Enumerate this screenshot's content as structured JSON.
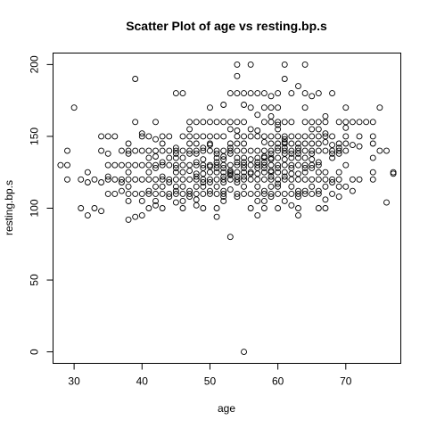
{
  "chart_data": {
    "type": "scatter",
    "title": "Scatter Plot of age vs resting.bp.s",
    "xlabel": "age",
    "ylabel": "resting.bp.s",
    "xlim": [
      26.9,
      78.1
    ],
    "ylim": [
      -8,
      208
    ],
    "xticks": [
      30,
      40,
      50,
      60,
      70
    ],
    "yticks": [
      0,
      50,
      100,
      150,
      200
    ],
    "grid": false,
    "points": [
      [
        28,
        130
      ],
      [
        29,
        120
      ],
      [
        29,
        130
      ],
      [
        29,
        140
      ],
      [
        30,
        170
      ],
      [
        31,
        100
      ],
      [
        31,
        120
      ],
      [
        32,
        95
      ],
      [
        32,
        118
      ],
      [
        32,
        125
      ],
      [
        33,
        100
      ],
      [
        33,
        120
      ],
      [
        34,
        98
      ],
      [
        34,
        118
      ],
      [
        34,
        140
      ],
      [
        34,
        150
      ],
      [
        35,
        110
      ],
      [
        35,
        120
      ],
      [
        35,
        122
      ],
      [
        35,
        130
      ],
      [
        35,
        138
      ],
      [
        35,
        150
      ],
      [
        36,
        110
      ],
      [
        36,
        120
      ],
      [
        36,
        130
      ],
      [
        36,
        150
      ],
      [
        37,
        112
      ],
      [
        37,
        118
      ],
      [
        37,
        120
      ],
      [
        37,
        130
      ],
      [
        37,
        140
      ],
      [
        38,
        92
      ],
      [
        38,
        105
      ],
      [
        38,
        110
      ],
      [
        38,
        115
      ],
      [
        38,
        120
      ],
      [
        38,
        125
      ],
      [
        38,
        130
      ],
      [
        38,
        138
      ],
      [
        38,
        140
      ],
      [
        38,
        145
      ],
      [
        39,
        94
      ],
      [
        39,
        110
      ],
      [
        39,
        120
      ],
      [
        39,
        130
      ],
      [
        39,
        140
      ],
      [
        39,
        160
      ],
      [
        39,
        190
      ],
      [
        40,
        95
      ],
      [
        40,
        105
      ],
      [
        40,
        110
      ],
      [
        40,
        120
      ],
      [
        40,
        130
      ],
      [
        40,
        140
      ],
      [
        40,
        150
      ],
      [
        40,
        152
      ],
      [
        41,
        100
      ],
      [
        41,
        110
      ],
      [
        41,
        112
      ],
      [
        41,
        120
      ],
      [
        41,
        125
      ],
      [
        41,
        130
      ],
      [
        41,
        135
      ],
      [
        41,
        140
      ],
      [
        41,
        150
      ],
      [
        42,
        102
      ],
      [
        42,
        105
      ],
      [
        42,
        110
      ],
      [
        42,
        115
      ],
      [
        42,
        120
      ],
      [
        42,
        128
      ],
      [
        42,
        130
      ],
      [
        42,
        136
      ],
      [
        42,
        140
      ],
      [
        42,
        148
      ],
      [
        42,
        160
      ],
      [
        43,
        100
      ],
      [
        43,
        110
      ],
      [
        43,
        115
      ],
      [
        43,
        120
      ],
      [
        43,
        122
      ],
      [
        43,
        130
      ],
      [
        43,
        132
      ],
      [
        43,
        140
      ],
      [
        43,
        145
      ],
      [
        43,
        150
      ],
      [
        44,
        108
      ],
      [
        44,
        110
      ],
      [
        44,
        118
      ],
      [
        44,
        120
      ],
      [
        44,
        130
      ],
      [
        44,
        135
      ],
      [
        44,
        140
      ],
      [
        44,
        150
      ],
      [
        45,
        104
      ],
      [
        45,
        110
      ],
      [
        45,
        112
      ],
      [
        45,
        115
      ],
      [
        45,
        120
      ],
      [
        45,
        125
      ],
      [
        45,
        128
      ],
      [
        45,
        130
      ],
      [
        45,
        135
      ],
      [
        45,
        138
      ],
      [
        45,
        140
      ],
      [
        45,
        142
      ],
      [
        45,
        180
      ],
      [
        46,
        100
      ],
      [
        46,
        105
      ],
      [
        46,
        110
      ],
      [
        46,
        115
      ],
      [
        46,
        120
      ],
      [
        46,
        125
      ],
      [
        46,
        130
      ],
      [
        46,
        135
      ],
      [
        46,
        140
      ],
      [
        46,
        150
      ],
      [
        46,
        180
      ],
      [
        47,
        108
      ],
      [
        47,
        110
      ],
      [
        47,
        112
      ],
      [
        47,
        120
      ],
      [
        47,
        126
      ],
      [
        47,
        130
      ],
      [
        47,
        138
      ],
      [
        47,
        140
      ],
      [
        47,
        145
      ],
      [
        47,
        150
      ],
      [
        47,
        155
      ],
      [
        47,
        160
      ],
      [
        48,
        102
      ],
      [
        48,
        106
      ],
      [
        48,
        110
      ],
      [
        48,
        115
      ],
      [
        48,
        120
      ],
      [
        48,
        122
      ],
      [
        48,
        124
      ],
      [
        48,
        130
      ],
      [
        48,
        132
      ],
      [
        48,
        138
      ],
      [
        48,
        140
      ],
      [
        48,
        145
      ],
      [
        48,
        150
      ],
      [
        48,
        160
      ],
      [
        49,
        100
      ],
      [
        49,
        110
      ],
      [
        49,
        115
      ],
      [
        49,
        118
      ],
      [
        49,
        120
      ],
      [
        49,
        124
      ],
      [
        49,
        128
      ],
      [
        49,
        130
      ],
      [
        49,
        134
      ],
      [
        49,
        140
      ],
      [
        49,
        142
      ],
      [
        49,
        150
      ],
      [
        49,
        160
      ],
      [
        50,
        110
      ],
      [
        50,
        112
      ],
      [
        50,
        118
      ],
      [
        50,
        120
      ],
      [
        50,
        125
      ],
      [
        50,
        129
      ],
      [
        50,
        130
      ],
      [
        50,
        140
      ],
      [
        50,
        144
      ],
      [
        50,
        145
      ],
      [
        50,
        150
      ],
      [
        50,
        160
      ],
      [
        50,
        170
      ],
      [
        51,
        94
      ],
      [
        51,
        100
      ],
      [
        51,
        110
      ],
      [
        51,
        115
      ],
      [
        51,
        120
      ],
      [
        51,
        125
      ],
      [
        51,
        128
      ],
      [
        51,
        130
      ],
      [
        51,
        132
      ],
      [
        51,
        135
      ],
      [
        51,
        138
      ],
      [
        51,
        140
      ],
      [
        51,
        150
      ],
      [
        51,
        160
      ],
      [
        52,
        105
      ],
      [
        52,
        108
      ],
      [
        52,
        110
      ],
      [
        52,
        112
      ],
      [
        52,
        118
      ],
      [
        52,
        120
      ],
      [
        52,
        122
      ],
      [
        52,
        125
      ],
      [
        52,
        128
      ],
      [
        52,
        130
      ],
      [
        52,
        134
      ],
      [
        52,
        136
      ],
      [
        52,
        140
      ],
      [
        52,
        150
      ],
      [
        52,
        160
      ],
      [
        52,
        172
      ],
      [
        53,
        80
      ],
      [
        53,
        113
      ],
      [
        53,
        120
      ],
      [
        53,
        123
      ],
      [
        53,
        124
      ],
      [
        53,
        125
      ],
      [
        53,
        126
      ],
      [
        53,
        130
      ],
      [
        53,
        138
      ],
      [
        53,
        140
      ],
      [
        53,
        142
      ],
      [
        53,
        145
      ],
      [
        53,
        155
      ],
      [
        53,
        160
      ],
      [
        53,
        180
      ],
      [
        54,
        108
      ],
      [
        54,
        110
      ],
      [
        54,
        118
      ],
      [
        54,
        120
      ],
      [
        54,
        122
      ],
      [
        54,
        125
      ],
      [
        54,
        130
      ],
      [
        54,
        132
      ],
      [
        54,
        135
      ],
      [
        54,
        140
      ],
      [
        54,
        145
      ],
      [
        54,
        150
      ],
      [
        54,
        154
      ],
      [
        54,
        160
      ],
      [
        54,
        180
      ],
      [
        54,
        192
      ],
      [
        54,
        200
      ],
      [
        55,
        0
      ],
      [
        55,
        110
      ],
      [
        55,
        115
      ],
      [
        55,
        120
      ],
      [
        55,
        122
      ],
      [
        55,
        125
      ],
      [
        55,
        128
      ],
      [
        55,
        130
      ],
      [
        55,
        132
      ],
      [
        55,
        135
      ],
      [
        55,
        140
      ],
      [
        55,
        145
      ],
      [
        55,
        150
      ],
      [
        55,
        160
      ],
      [
        55,
        172
      ],
      [
        55,
        180
      ],
      [
        56,
        100
      ],
      [
        56,
        110
      ],
      [
        56,
        120
      ],
      [
        56,
        124
      ],
      [
        56,
        125
      ],
      [
        56,
        130
      ],
      [
        56,
        134
      ],
      [
        56,
        140
      ],
      [
        56,
        150
      ],
      [
        56,
        155
      ],
      [
        56,
        170
      ],
      [
        56,
        180
      ],
      [
        56,
        200
      ],
      [
        57,
        95
      ],
      [
        57,
        105
      ],
      [
        57,
        110
      ],
      [
        57,
        115
      ],
      [
        57,
        120
      ],
      [
        57,
        124
      ],
      [
        57,
        128
      ],
      [
        57,
        130
      ],
      [
        57,
        132
      ],
      [
        57,
        135
      ],
      [
        57,
        140
      ],
      [
        57,
        150
      ],
      [
        57,
        154
      ],
      [
        57,
        165
      ],
      [
        57,
        180
      ],
      [
        58,
        100
      ],
      [
        58,
        105
      ],
      [
        58,
        110
      ],
      [
        58,
        112
      ],
      [
        58,
        120
      ],
      [
        58,
        125
      ],
      [
        58,
        128
      ],
      [
        58,
        130
      ],
      [
        58,
        132
      ],
      [
        58,
        135
      ],
      [
        58,
        136
      ],
      [
        58,
        140
      ],
      [
        58,
        146
      ],
      [
        58,
        150
      ],
      [
        58,
        160
      ],
      [
        58,
        170
      ],
      [
        58,
        180
      ],
      [
        59,
        108
      ],
      [
        59,
        110
      ],
      [
        59,
        115
      ],
      [
        59,
        120
      ],
      [
        59,
        122
      ],
      [
        59,
        125
      ],
      [
        59,
        126
      ],
      [
        59,
        130
      ],
      [
        59,
        134
      ],
      [
        59,
        135
      ],
      [
        59,
        138
      ],
      [
        59,
        140
      ],
      [
        59,
        145
      ],
      [
        59,
        150
      ],
      [
        59,
        160
      ],
      [
        59,
        164
      ],
      [
        59,
        170
      ],
      [
        59,
        178
      ],
      [
        60,
        100
      ],
      [
        60,
        110
      ],
      [
        60,
        115
      ],
      [
        60,
        117
      ],
      [
        60,
        120
      ],
      [
        60,
        125
      ],
      [
        60,
        128
      ],
      [
        60,
        130
      ],
      [
        60,
        135
      ],
      [
        60,
        140
      ],
      [
        60,
        142
      ],
      [
        60,
        145
      ],
      [
        60,
        150
      ],
      [
        60,
        155
      ],
      [
        60,
        158
      ],
      [
        60,
        160
      ],
      [
        60,
        170
      ],
      [
        60,
        180
      ],
      [
        61,
        105
      ],
      [
        61,
        110
      ],
      [
        61,
        120
      ],
      [
        61,
        122
      ],
      [
        61,
        125
      ],
      [
        61,
        130
      ],
      [
        61,
        134
      ],
      [
        61,
        138
      ],
      [
        61,
        140
      ],
      [
        61,
        142
      ],
      [
        61,
        145
      ],
      [
        61,
        146
      ],
      [
        61,
        148
      ],
      [
        61,
        150
      ],
      [
        61,
        160
      ],
      [
        61,
        190
      ],
      [
        61,
        200
      ],
      [
        62,
        102
      ],
      [
        62,
        110
      ],
      [
        62,
        115
      ],
      [
        62,
        120
      ],
      [
        62,
        124
      ],
      [
        62,
        128
      ],
      [
        62,
        130
      ],
      [
        62,
        135
      ],
      [
        62,
        138
      ],
      [
        62,
        140
      ],
      [
        62,
        145
      ],
      [
        62,
        150
      ],
      [
        62,
        160
      ],
      [
        62,
        180
      ],
      [
        63,
        95
      ],
      [
        63,
        100
      ],
      [
        63,
        108
      ],
      [
        63,
        110
      ],
      [
        63,
        112
      ],
      [
        63,
        120
      ],
      [
        63,
        124
      ],
      [
        63,
        130
      ],
      [
        63,
        135
      ],
      [
        63,
        138
      ],
      [
        63,
        140
      ],
      [
        63,
        142
      ],
      [
        63,
        145
      ],
      [
        63,
        150
      ],
      [
        63,
        185
      ],
      [
        64,
        110
      ],
      [
        64,
        112
      ],
      [
        64,
        120
      ],
      [
        64,
        125
      ],
      [
        64,
        128
      ],
      [
        64,
        130
      ],
      [
        64,
        135
      ],
      [
        64,
        140
      ],
      [
        64,
        145
      ],
      [
        64,
        150
      ],
      [
        64,
        160
      ],
      [
        64,
        170
      ],
      [
        64,
        180
      ],
      [
        64,
        200
      ],
      [
        65,
        110
      ],
      [
        65,
        115
      ],
      [
        65,
        120
      ],
      [
        65,
        128
      ],
      [
        65,
        130
      ],
      [
        65,
        134
      ],
      [
        65,
        138
      ],
      [
        65,
        140
      ],
      [
        65,
        145
      ],
      [
        65,
        150
      ],
      [
        65,
        155
      ],
      [
        65,
        160
      ],
      [
        65,
        178
      ],
      [
        66,
        100
      ],
      [
        66,
        110
      ],
      [
        66,
        112
      ],
      [
        66,
        120
      ],
      [
        66,
        125
      ],
      [
        66,
        130
      ],
      [
        66,
        132
      ],
      [
        66,
        140
      ],
      [
        66,
        145
      ],
      [
        66,
        150
      ],
      [
        66,
        155
      ],
      [
        66,
        160
      ],
      [
        66,
        180
      ],
      [
        67,
        100
      ],
      [
        67,
        106
      ],
      [
        67,
        115
      ],
      [
        67,
        120
      ],
      [
        67,
        125
      ],
      [
        67,
        140
      ],
      [
        67,
        146
      ],
      [
        67,
        150
      ],
      [
        67,
        152
      ],
      [
        67,
        160
      ],
      [
        67,
        164
      ],
      [
        68,
        110
      ],
      [
        68,
        118
      ],
      [
        68,
        120
      ],
      [
        68,
        135
      ],
      [
        68,
        138
      ],
      [
        68,
        140
      ],
      [
        68,
        144
      ],
      [
        68,
        150
      ],
      [
        68,
        180
      ],
      [
        69,
        108
      ],
      [
        69,
        115
      ],
      [
        69,
        120
      ],
      [
        69,
        125
      ],
      [
        69,
        138
      ],
      [
        69,
        140
      ],
      [
        69,
        142
      ],
      [
        69,
        145
      ],
      [
        69,
        160
      ],
      [
        70,
        115
      ],
      [
        70,
        130
      ],
      [
        70,
        140
      ],
      [
        70,
        145
      ],
      [
        70,
        150
      ],
      [
        70,
        156
      ],
      [
        70,
        160
      ],
      [
        70,
        170
      ],
      [
        71,
        112
      ],
      [
        71,
        120
      ],
      [
        71,
        144
      ],
      [
        71,
        160
      ],
      [
        72,
        120
      ],
      [
        72,
        143
      ],
      [
        72,
        150
      ],
      [
        72,
        160
      ],
      [
        73,
        160
      ],
      [
        74,
        120
      ],
      [
        74,
        125
      ],
      [
        74,
        135
      ],
      [
        74,
        145
      ],
      [
        74,
        150
      ],
      [
        74,
        160
      ],
      [
        75,
        140
      ],
      [
        75,
        170
      ],
      [
        76,
        104
      ],
      [
        76,
        140
      ],
      [
        77,
        124
      ],
      [
        77,
        125
      ]
    ]
  }
}
